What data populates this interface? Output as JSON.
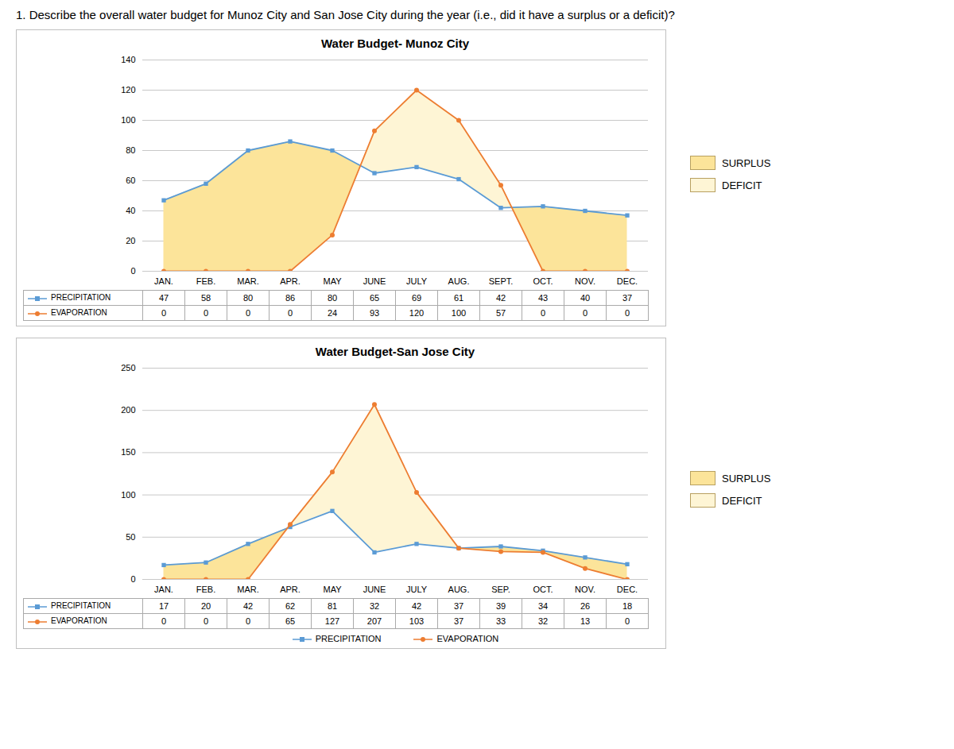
{
  "title": "1.   Describe the overall water budget for Munoz City and San Jose City during the year (i.e., did it have a surplus or a deficit)?",
  "chart_data": [
    {
      "type": "line",
      "title": "Water Budget- Munoz City",
      "categories": [
        "JAN.",
        "FEB.",
        "MAR.",
        "APR.",
        "MAY",
        "JUNE",
        "JULY",
        "AUG.",
        "SEPT.",
        "OCT.",
        "NOV.",
        "DEC."
      ],
      "series": [
        {
          "name": "PRECIPITATION",
          "color": "#5b9bd5",
          "marker": "square",
          "values": [
            47,
            58,
            80,
            86,
            80,
            65,
            69,
            61,
            42,
            43,
            40,
            37
          ]
        },
        {
          "name": "EVAPORATION",
          "color": "#ed7d31",
          "marker": "circle",
          "values": [
            0,
            0,
            0,
            0,
            24,
            93,
            120,
            100,
            57,
            0,
            0,
            0
          ]
        }
      ],
      "fill_between": [
        {
          "name": "SURPLUS",
          "color": "#fce49a"
        },
        {
          "name": "DEFICIT",
          "color": "#fef5d5"
        }
      ],
      "ylim": [
        0,
        140
      ],
      "yticks": [
        0,
        20,
        40,
        60,
        80,
        100,
        120,
        140
      ],
      "grid": true
    },
    {
      "type": "line",
      "title": "Water Budget-San Jose City",
      "categories": [
        "JAN.",
        "FEB.",
        "MAR.",
        "APR.",
        "MAY",
        "JUNE",
        "JULY",
        "AUG.",
        "SEP.",
        "OCT.",
        "NOV.",
        "DEC."
      ],
      "series": [
        {
          "name": "PRECIPITATION",
          "color": "#5b9bd5",
          "marker": "square",
          "values": [
            17,
            20,
            42,
            62,
            81,
            32,
            42,
            37,
            39,
            34,
            26,
            18
          ]
        },
        {
          "name": "EVAPORATION",
          "color": "#ed7d31",
          "marker": "circle",
          "values": [
            0,
            0,
            0,
            65,
            127,
            207,
            103,
            37,
            33,
            32,
            13,
            0
          ]
        }
      ],
      "fill_between": [
        {
          "name": "SURPLUS",
          "color": "#fce49a"
        },
        {
          "name": "DEFICIT",
          "color": "#fef5d5"
        }
      ],
      "ylim": [
        0,
        250
      ],
      "yticks": [
        0,
        50,
        100,
        150,
        200,
        250
      ],
      "grid": true,
      "legend": "bottom"
    }
  ]
}
